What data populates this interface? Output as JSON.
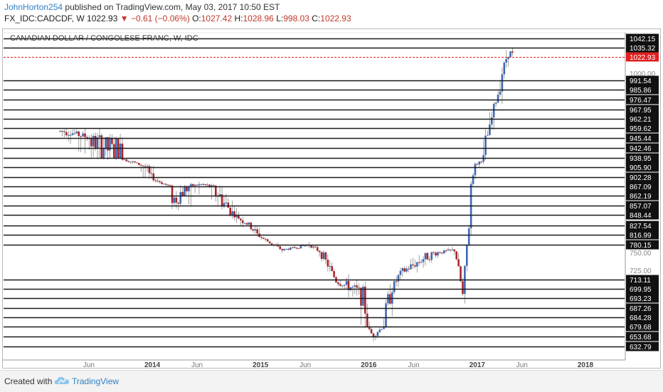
{
  "header": {
    "author": "JohnHorton254",
    "published": "published on TradingView.com, May 03, 2017 10:50 EST",
    "symbol": "FX_IDC:CADCDF, W",
    "last": "1022.93",
    "change_icon": "down-triangle-icon",
    "change": "−0.61 (−0.06%)",
    "o_label": "O:",
    "o_value": "1027.42",
    "h_label": "H:",
    "h_value": "1028.96",
    "l_label": "L:",
    "l_value": "998.03",
    "c_label": "C:",
    "c_value": "1022.93"
  },
  "footer": {
    "created_with": "Created with",
    "brand": "TradingView",
    "brand_icon": "tradingview-cloud-icon"
  },
  "colors": {
    "up": "#3f68b5",
    "down": "#a8262c",
    "hline": "#1a1a1a",
    "price_line": "#e02020",
    "brand": "#2f80c4"
  },
  "chart_data": {
    "type": "candlestick",
    "title": "CANADIAN DOLLAR / CONGOLESE FRANC, W, IDC",
    "x_ticks": [
      "Jun",
      "2014",
      "Jun",
      "2015",
      "Jun",
      "2016",
      "Jun",
      "2017",
      "Jun",
      "2018"
    ],
    "y_ticks": [
      "1000.00",
      "750.00",
      "725.00"
    ],
    "horizontal_levels": [
      "1042.15",
      "1035.32",
      "991.54",
      "985.86",
      "976.47",
      "967.95",
      "962.21",
      "959.62",
      "945.44",
      "942.46",
      "938.95",
      "905.90",
      "902.28",
      "867.09",
      "862.19",
      "857.07",
      "848.44",
      "827.54",
      "816.99",
      "780.15",
      "713.11",
      "699.95",
      "693.23",
      "687.26",
      "684.28",
      "679.68",
      "653.68",
      "632.79"
    ],
    "last_price": "1022.93",
    "last_price_line": "dashed",
    "approx_path": [
      {
        "date": "2013-03",
        "close": 955
      },
      {
        "date": "2013-06",
        "close": 945
      },
      {
        "date": "2013-09",
        "close": 940
      },
      {
        "date": "2013-12",
        "close": 905
      },
      {
        "date": "2014-03",
        "close": 860
      },
      {
        "date": "2014-06",
        "close": 875
      },
      {
        "date": "2014-09",
        "close": 855
      },
      {
        "date": "2014-12",
        "close": 820
      },
      {
        "date": "2015-03",
        "close": 760
      },
      {
        "date": "2015-06",
        "close": 780
      },
      {
        "date": "2015-09",
        "close": 710
      },
      {
        "date": "2015-12",
        "close": 695
      },
      {
        "date": "2016-01",
        "close": 655
      },
      {
        "date": "2016-04",
        "close": 720
      },
      {
        "date": "2016-07",
        "close": 745
      },
      {
        "date": "2016-10",
        "close": 760
      },
      {
        "date": "2016-11",
        "close": 690
      },
      {
        "date": "2016-12",
        "close": 905
      },
      {
        "date": "2017-01",
        "close": 930
      },
      {
        "date": "2017-03",
        "close": 985
      },
      {
        "date": "2017-04",
        "close": 1030
      },
      {
        "date": "2017-05",
        "close": 1022.93
      }
    ]
  }
}
